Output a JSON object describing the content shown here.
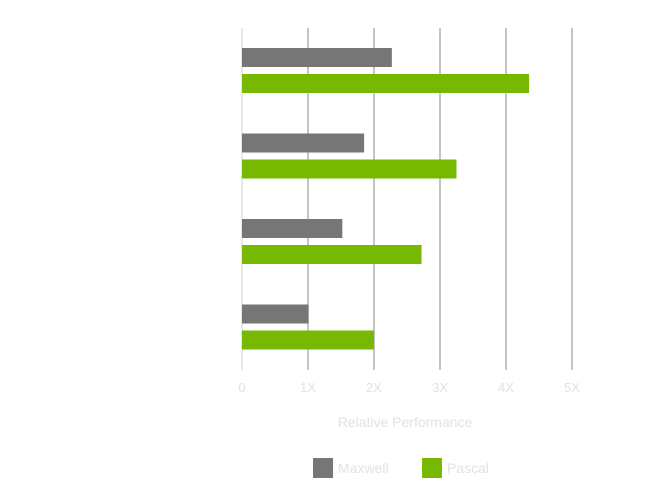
{
  "chart_data": {
    "type": "bar",
    "orientation": "horizontal",
    "title": "",
    "xlabel": "Relative Performance",
    "ylabel": "",
    "xlim": [
      0,
      5
    ],
    "x_ticks": [
      "0",
      "1X",
      "2X",
      "3X",
      "4X",
      "5X"
    ],
    "categories": [
      "",
      "",
      "",
      ""
    ],
    "series": [
      {
        "name": "Maxwell",
        "color": "#767676",
        "values": [
          2.27,
          1.85,
          1.52,
          1.01
        ]
      },
      {
        "name": "Pascal",
        "color": "#76b900",
        "values": [
          4.35,
          3.25,
          2.72,
          2.0
        ]
      }
    ],
    "grid": "vertical",
    "legend": "bottom-center"
  }
}
